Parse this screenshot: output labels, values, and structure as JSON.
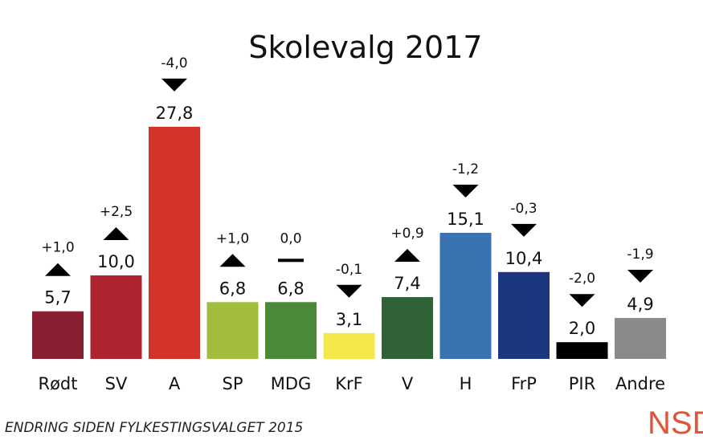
{
  "chart_data": {
    "type": "bar",
    "title": "Skolevalg 2017",
    "categories": [
      "Rødt",
      "SV",
      "A",
      "SP",
      "MDG",
      "KrF",
      "V",
      "H",
      "FrP",
      "PIR",
      "Andre"
    ],
    "values": [
      5.7,
      10.0,
      27.8,
      6.8,
      6.8,
      3.1,
      7.4,
      15.1,
      10.4,
      2.0,
      4.9
    ],
    "value_labels": [
      "5,7",
      "10,0",
      "27,8",
      "6,8",
      "6,8",
      "3,1",
      "7,4",
      "15,1",
      "10,4",
      "2,0",
      "4,9"
    ],
    "changes": [
      1.0,
      2.5,
      -4.0,
      1.0,
      0.0,
      -0.1,
      0.9,
      -1.2,
      -0.3,
      -2.0,
      -1.9
    ],
    "change_labels": [
      "+1,0",
      "+2,5",
      "-4,0",
      "+1,0",
      "0,0",
      "-0,1",
      "+0,9",
      "-1,2",
      "-0,3",
      "-2,0",
      "-1,9"
    ],
    "colors": [
      "#8b1f32",
      "#ae2530",
      "#d33328",
      "#a2bd3e",
      "#4a8a3a",
      "#f4e84a",
      "#2f6236",
      "#3b72b2",
      "#1b357f",
      "#000000",
      "#8a8a8b"
    ],
    "ylim": [
      0,
      30
    ],
    "grid": false,
    "footnote": "ENDRING SIDEN FYLKESTINGSVALGET 2015"
  },
  "logo": "NSD"
}
